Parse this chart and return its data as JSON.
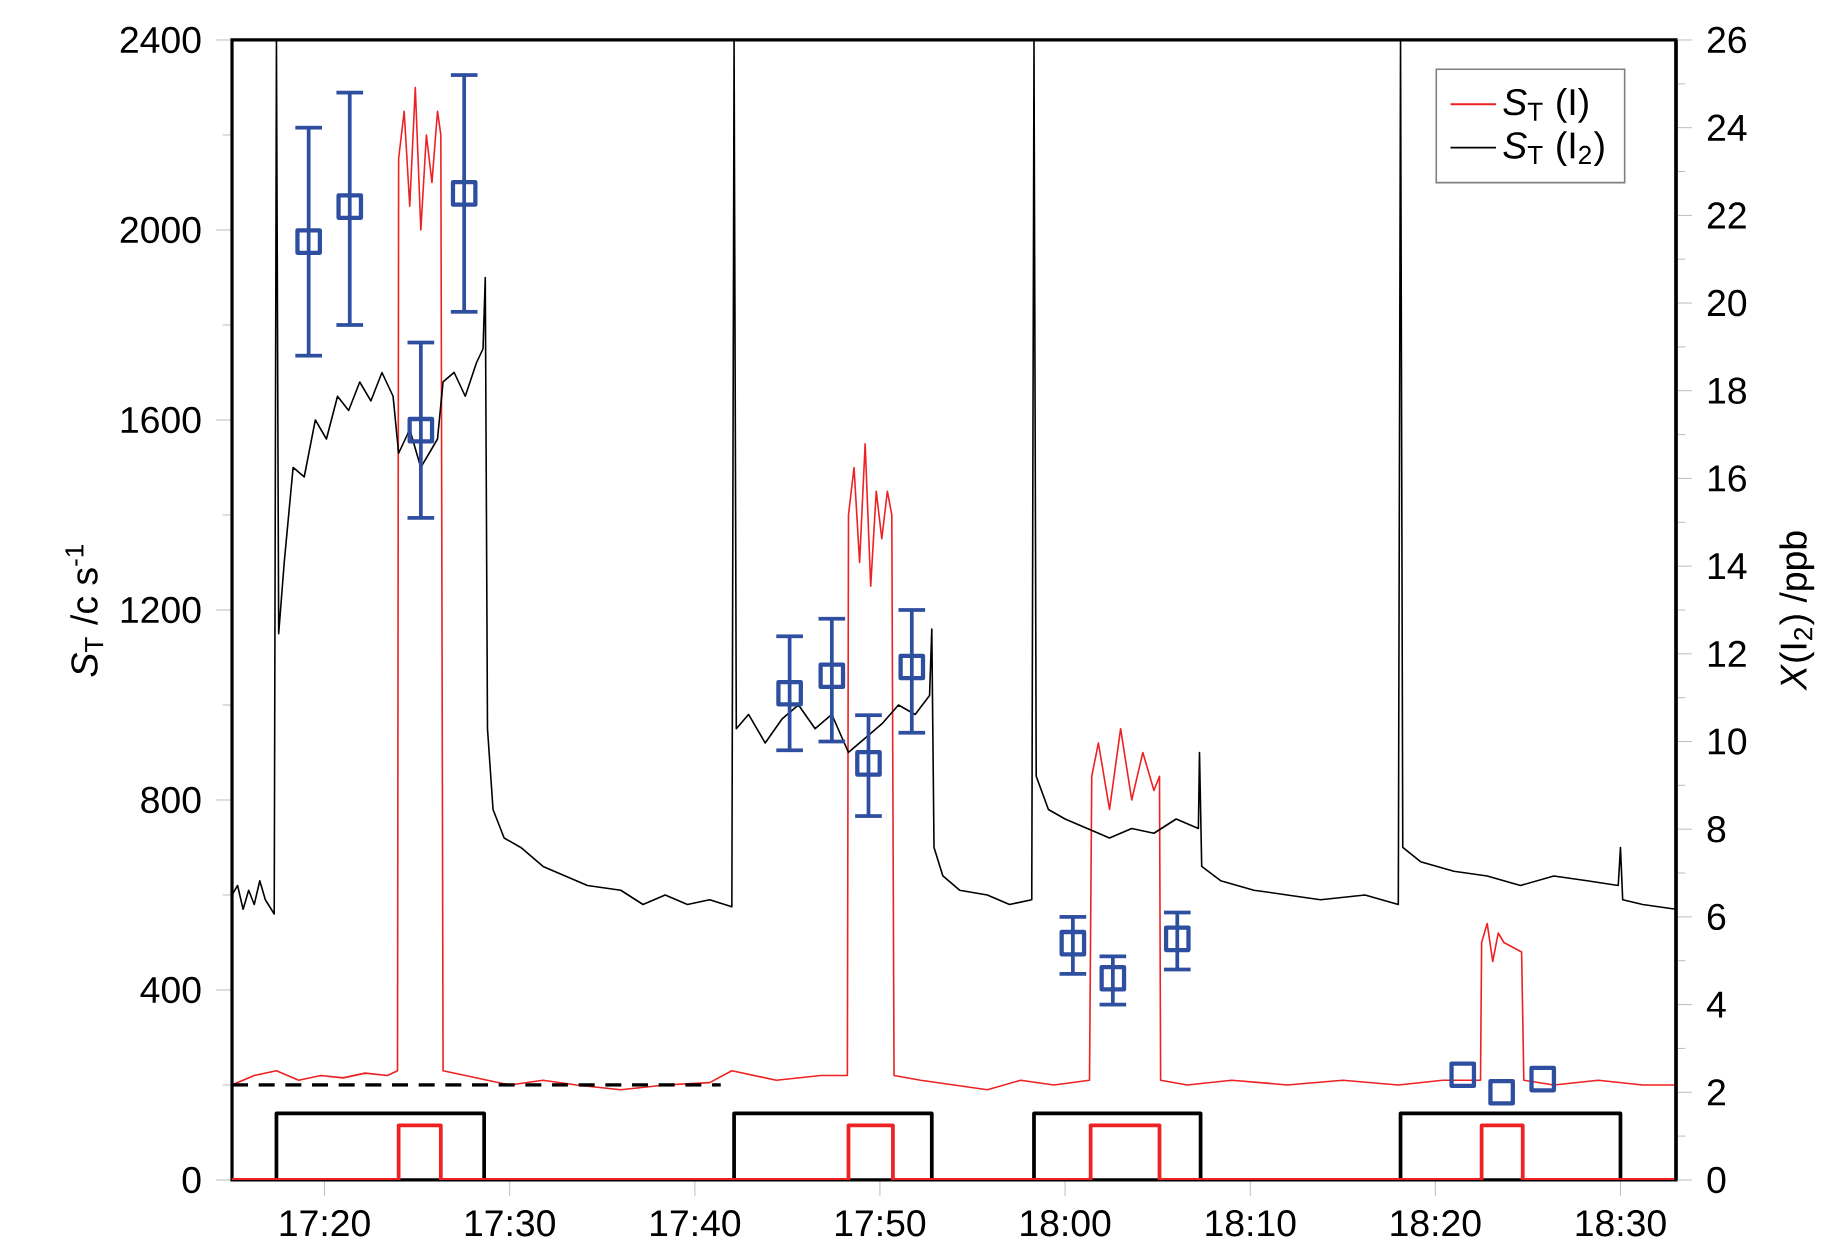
{
  "chart_data": {
    "type": "line",
    "xlabel": null,
    "ylabel": "*S*$_{T}$ /c s$^{-1}$",
    "y2label": "*X*(I$_{2}$) /ppb",
    "xlim": [
      17.25,
      18.55
    ],
    "ylim": [
      0,
      2400
    ],
    "y2lim": [
      0,
      26
    ],
    "xticks": [
      {
        "value": 17.3333,
        "label": "17:20"
      },
      {
        "value": 17.5,
        "label": "17:30"
      },
      {
        "value": 17.6667,
        "label": "17:40"
      },
      {
        "value": 17.8333,
        "label": "17:50"
      },
      {
        "value": 18.0,
        "label": "18:00"
      },
      {
        "value": 18.1667,
        "label": "18:10"
      },
      {
        "value": 18.3333,
        "label": "18:20"
      },
      {
        "value": 18.5,
        "label": "18:30"
      }
    ],
    "yticks": [
      0,
      400,
      800,
      1200,
      1600,
      2000,
      2400
    ],
    "y2ticks": [
      0,
      2,
      4,
      6,
      8,
      10,
      12,
      14,
      16,
      18,
      20,
      22,
      24,
      26
    ],
    "legend": "top right",
    "grid": false,
    "series": [
      {
        "name": "*S*$_{T}$ (I)",
        "color": "#ee2222",
        "x": [
          17.25,
          17.27,
          17.29,
          17.31,
          17.33,
          17.35,
          17.37,
          17.39,
          17.399,
          17.4,
          17.405,
          17.41,
          17.415,
          17.42,
          17.425,
          17.43,
          17.435,
          17.438,
          17.44,
          17.46,
          17.48,
          17.5,
          17.53,
          17.56,
          17.6,
          17.64,
          17.68,
          17.7,
          17.74,
          17.78,
          17.804,
          17.805,
          17.81,
          17.815,
          17.82,
          17.825,
          17.83,
          17.835,
          17.84,
          17.844,
          17.846,
          17.87,
          17.9,
          17.93,
          17.96,
          17.99,
          18.022,
          18.024,
          18.03,
          18.04,
          18.05,
          18.06,
          18.07,
          18.08,
          18.085,
          18.086,
          18.11,
          18.15,
          18.2,
          18.25,
          18.3,
          18.34,
          18.374,
          18.375,
          18.38,
          18.385,
          18.39,
          18.395,
          18.411,
          18.413,
          18.44,
          18.48,
          18.52,
          18.55
        ],
        "values": [
          200,
          220,
          230,
          210,
          220,
          215,
          225,
          220,
          230,
          2150,
          2250,
          2050,
          2300,
          2000,
          2200,
          2100,
          2250,
          2200,
          230,
          220,
          210,
          200,
          210,
          200,
          190,
          200,
          205,
          230,
          210,
          220,
          220,
          1400,
          1500,
          1300,
          1550,
          1250,
          1450,
          1350,
          1450,
          1400,
          220,
          210,
          200,
          190,
          210,
          200,
          210,
          850,
          920,
          780,
          950,
          800,
          900,
          820,
          850,
          210,
          200,
          210,
          200,
          210,
          200,
          210,
          210,
          500,
          540,
          460,
          520,
          500,
          480,
          210,
          200,
          210,
          200,
          200
        ]
      },
      {
        "name": "*S*$_{T}$ (I$_{2}$)",
        "color": "#000000",
        "x": [
          17.25,
          17.255,
          17.26,
          17.265,
          17.27,
          17.275,
          17.28,
          17.288,
          17.29,
          17.292,
          17.297,
          17.305,
          17.315,
          17.325,
          17.335,
          17.345,
          17.355,
          17.365,
          17.375,
          17.385,
          17.395,
          17.4,
          17.41,
          17.42,
          17.435,
          17.44,
          17.45,
          17.46,
          17.47,
          17.476,
          17.478,
          17.48,
          17.485,
          17.495,
          17.51,
          17.53,
          17.55,
          17.57,
          17.6,
          17.62,
          17.64,
          17.66,
          17.68,
          17.7,
          17.702,
          17.704,
          17.715,
          17.73,
          17.745,
          17.76,
          17.775,
          17.79,
          17.805,
          17.82,
          17.835,
          17.85,
          17.865,
          17.878,
          17.88,
          17.882,
          17.89,
          17.905,
          17.93,
          17.95,
          17.97,
          17.972,
          17.974,
          17.985,
          18.0,
          18.02,
          18.04,
          18.06,
          18.08,
          18.1,
          18.12,
          18.121,
          18.123,
          18.14,
          18.17,
          18.2,
          18.23,
          18.27,
          18.3,
          18.302,
          18.304,
          18.32,
          18.35,
          18.38,
          18.41,
          18.44,
          18.47,
          18.498,
          18.5,
          18.502,
          18.52,
          18.55
        ],
        "values": [
          600,
          620,
          570,
          610,
          580,
          630,
          590,
          560,
          2400,
          1150,
          1300,
          1500,
          1480,
          1600,
          1560,
          1650,
          1620,
          1680,
          1640,
          1700,
          1650,
          1530,
          1580,
          1500,
          1560,
          1680,
          1700,
          1650,
          1720,
          1750,
          1900,
          950,
          780,
          720,
          700,
          660,
          640,
          620,
          610,
          580,
          600,
          580,
          590,
          575,
          2400,
          950,
          980,
          920,
          970,
          1000,
          950,
          980,
          900,
          930,
          960,
          1000,
          980,
          1020,
          1160,
          700,
          640,
          610,
          600,
          580,
          590,
          2400,
          850,
          780,
          760,
          740,
          720,
          740,
          730,
          760,
          740,
          900,
          660,
          630,
          610,
          600,
          590,
          600,
          580,
          2400,
          700,
          670,
          650,
          640,
          620,
          640,
          630,
          620,
          700,
          590,
          580,
          570
        ]
      },
      {
        "line_style": "dashed",
        "color": "#000000",
        "x": [
          17.25,
          17.69
        ],
        "values": [
          200,
          200
        ]
      },
      {
        "type": "step",
        "color": "#000000",
        "x": [
          17.25,
          17.29,
          17.477,
          17.702,
          17.88,
          17.972,
          18.122,
          18.302,
          18.5,
          18.55
        ],
        "values": [
          0,
          140,
          0,
          140,
          0,
          140,
          0,
          140,
          0,
          0
        ]
      },
      {
        "type": "step",
        "color": "#ee2222",
        "x": [
          17.25,
          17.4,
          17.438,
          17.805,
          17.845,
          18.023,
          18.085,
          18.375,
          18.412,
          18.55
        ],
        "values": [
          0,
          115,
          0,
          115,
          0,
          115,
          0,
          115,
          0,
          0
        ]
      },
      {
        "type": "scatter",
        "axis": "y2",
        "marker": "square",
        "color": "#2e4ea0",
        "x": [
          17.319,
          17.356,
          17.42,
          17.459,
          17.752,
          17.79,
          17.823,
          17.862,
          18.007,
          18.043,
          18.101,
          18.358,
          18.393,
          18.43
        ],
        "values": [
          21.4,
          22.2,
          17.1,
          22.5,
          11.1,
          11.5,
          9.5,
          11.7,
          5.4,
          4.6,
          5.5,
          2.4,
          2.0,
          2.3
        ],
        "errors": [
          [
            18.8,
            24.0
          ],
          [
            19.5,
            24.8
          ],
          [
            15.1,
            19.1
          ],
          [
            19.8,
            25.2
          ],
          [
            9.8,
            12.4
          ],
          [
            10.0,
            12.8
          ],
          [
            8.3,
            10.6
          ],
          [
            10.2,
            13.0
          ],
          [
            4.7,
            6.0
          ],
          [
            4.0,
            5.1
          ],
          [
            4.8,
            6.1
          ],
          null,
          null,
          null
        ]
      }
    ]
  }
}
